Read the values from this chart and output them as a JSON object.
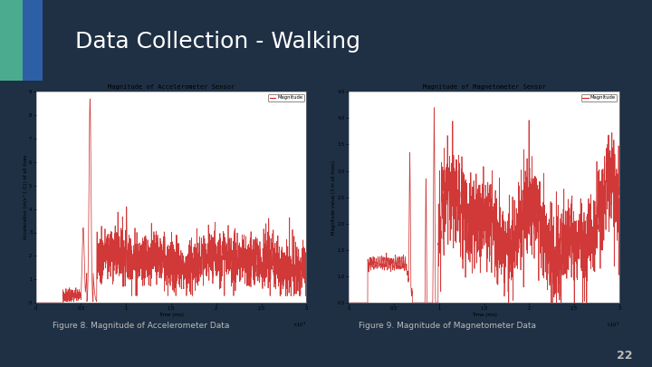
{
  "title": "Data Collection - Walking",
  "title_color": "#ffffff",
  "slide_bg": "#1f3044",
  "fig8_title": "Magnitude of Accelerometer Sensor",
  "fig8_xlabel": "Time (ms)",
  "fig8_ylabel": "Acceleration (m/s^{-2}) of all Axes",
  "fig8_legend": "Magnitude",
  "fig8_ylim": [
    0,
    9
  ],
  "fig8_xlim": [
    0,
    30000
  ],
  "fig8_yticks": [
    0,
    1,
    2,
    3,
    4,
    5,
    6,
    7,
    8,
    9
  ],
  "fig8_xtick_vals": [
    0,
    5000,
    10000,
    15000,
    20000,
    25000,
    30000
  ],
  "fig8_xtick_labels": [
    "0",
    "0.5",
    "1",
    "1.5",
    "2",
    "2.5",
    "3"
  ],
  "fig9_title": "Magnitude of Magnetometer Sensor",
  "fig9_xlabel": "Time (ms)",
  "fig9_ylabel": "Magnitude value (3 in all Axes)",
  "fig9_legend": "Magnitude",
  "fig9_ylim": [
    0.5,
    4.5
  ],
  "fig9_xlim": [
    0,
    30000
  ],
  "fig9_yticks": [
    0.5,
    1.0,
    1.5,
    2.0,
    2.5,
    3.0,
    3.5,
    4.0,
    4.5
  ],
  "fig9_xtick_vals": [
    0,
    5000,
    10000,
    15000,
    20000,
    25000,
    30000
  ],
  "fig9_xtick_labels": [
    "0",
    "0.5",
    "1",
    "1.5",
    "2",
    "2.5",
    "3"
  ],
  "line_color": "#cc2222",
  "caption1": "Figure 8. Magnitude of Accelerometer Data",
  "caption2": "Figure 9. Magnitude of Magnetometer Data",
  "page_number": "22",
  "caption_color": "#bbbbbb",
  "accent_blue": "#2d5fa6",
  "accent_teal": "#4aab8e",
  "chart_bg": "#f8f8f8",
  "panel_bg": "#e8e8e8"
}
